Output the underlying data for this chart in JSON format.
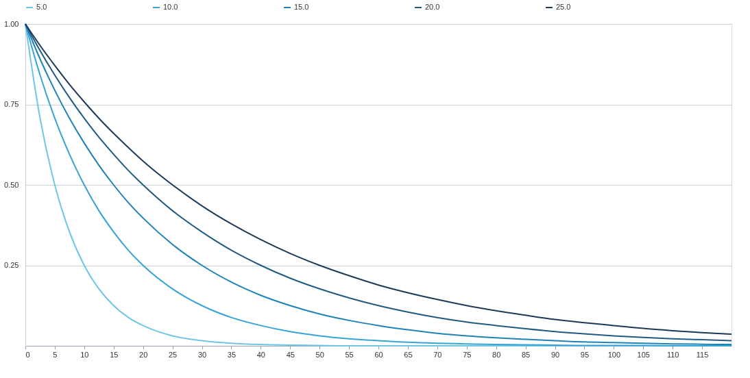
{
  "chart_data": {
    "type": "line",
    "x": [
      0,
      2.5,
      5,
      7.5,
      10,
      12.5,
      15,
      17.5,
      20,
      25,
      30,
      35,
      40,
      45,
      50,
      55,
      60,
      65,
      70,
      75,
      80,
      85,
      90,
      95,
      100,
      105,
      110,
      115,
      120
    ],
    "series": [
      {
        "name": "5.0",
        "color": "#6ec6e6",
        "values": [
          1,
          0.707,
          0.5,
          0.354,
          0.25,
          0.177,
          0.125,
          0.088,
          0.063,
          0.031,
          0.016,
          0.008,
          0.004,
          0.002,
          0.001,
          0,
          0,
          0,
          0,
          0,
          0,
          0,
          0,
          0,
          0,
          0,
          0,
          0,
          0
        ]
      },
      {
        "name": "10.0",
        "color": "#36a3d6",
        "values": [
          1,
          0.841,
          0.707,
          0.595,
          0.5,
          0.42,
          0.354,
          0.297,
          0.25,
          0.177,
          0.125,
          0.088,
          0.063,
          0.044,
          0.031,
          0.022,
          0.016,
          0.011,
          0.008,
          0.006,
          0.004,
          0.003,
          0.002,
          0.001,
          0.001,
          0.001,
          0,
          0,
          0
        ]
      },
      {
        "name": "15.0",
        "color": "#1d82b8",
        "values": [
          1,
          0.891,
          0.794,
          0.707,
          0.63,
          0.561,
          0.5,
          0.445,
          0.397,
          0.315,
          0.25,
          0.198,
          0.157,
          0.125,
          0.099,
          0.079,
          0.063,
          0.05,
          0.039,
          0.031,
          0.025,
          0.02,
          0.016,
          0.012,
          0.01,
          0.008,
          0.006,
          0.005,
          0.004
        ]
      },
      {
        "name": "20.0",
        "color": "#1e5a82",
        "values": [
          1,
          0.917,
          0.841,
          0.771,
          0.707,
          0.648,
          0.595,
          0.545,
          0.5,
          0.42,
          0.354,
          0.297,
          0.25,
          0.21,
          0.177,
          0.149,
          0.125,
          0.105,
          0.088,
          0.074,
          0.063,
          0.053,
          0.044,
          0.037,
          0.031,
          0.026,
          0.022,
          0.019,
          0.016
        ]
      },
      {
        "name": "25.0",
        "color": "#1c3a58",
        "values": [
          1,
          0.933,
          0.871,
          0.812,
          0.758,
          0.707,
          0.66,
          0.616,
          0.574,
          0.5,
          0.435,
          0.379,
          0.33,
          0.287,
          0.25,
          0.218,
          0.189,
          0.165,
          0.144,
          0.125,
          0.109,
          0.095,
          0.082,
          0.072,
          0.063,
          0.054,
          0.047,
          0.041,
          0.036
        ]
      }
    ],
    "xlim": [
      0,
      120
    ],
    "xticks": [
      0,
      5,
      10,
      15,
      20,
      25,
      30,
      35,
      40,
      45,
      50,
      55,
      60,
      65,
      70,
      75,
      80,
      85,
      90,
      95,
      100,
      105,
      110,
      115
    ],
    "ylim": [
      0,
      1
    ],
    "yticks": [
      {
        "value": 0.25,
        "label": "0.25"
      },
      {
        "value": 0.5,
        "label": "0.50"
      },
      {
        "value": 0.75,
        "label": "0.75"
      },
      {
        "value": 1,
        "label": "1.00"
      }
    ],
    "grid": "y",
    "legend": "top",
    "marker": "none",
    "line_style": "solid"
  }
}
